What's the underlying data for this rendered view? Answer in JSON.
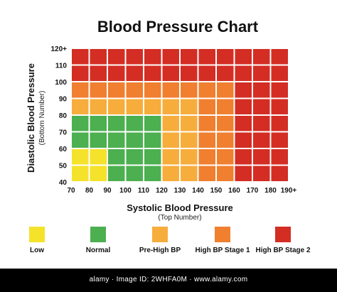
{
  "chart_data": {
    "type": "heatmap",
    "title": "Blood Pressure Chart",
    "xlabel": "Systolic Blood Pressure",
    "xlabel_sub": "(Top Number)",
    "ylabel": "Diastolic Blood Pressure",
    "ylabel_sub": "(Bottom Number)",
    "x_ticks": [
      "70",
      "80",
      "90",
      "100",
      "110",
      "120",
      "130",
      "140",
      "150",
      "160",
      "170",
      "180",
      "190+"
    ],
    "y_ticks": [
      "40",
      "50",
      "60",
      "70",
      "80",
      "90",
      "100",
      "110",
      "120+"
    ],
    "categories": [
      "Low",
      "Normal",
      "Pre-High BP",
      "High BP Stage 1",
      "High BP Stage 2"
    ],
    "colors": {
      "Low": "#f5e22a",
      "Normal": "#4caf50",
      "Pre-High BP": "#f7ad3b",
      "High BP Stage 1": "#f07f2f",
      "High BP Stage 2": "#d32d24"
    },
    "grid_rows_bottom_to_top": [
      [
        "Low",
        "Low",
        "Normal",
        "Normal",
        "Normal",
        "Pre-High BP",
        "Pre-High BP",
        "High BP Stage 1",
        "High BP Stage 1",
        "High BP Stage 2",
        "High BP Stage 2",
        "High BP Stage 2"
      ],
      [
        "Low",
        "Low",
        "Normal",
        "Normal",
        "Normal",
        "Pre-High BP",
        "Pre-High BP",
        "High BP Stage 1",
        "High BP Stage 1",
        "High BP Stage 2",
        "High BP Stage 2",
        "High BP Stage 2"
      ],
      [
        "Normal",
        "Normal",
        "Normal",
        "Normal",
        "Normal",
        "Pre-High BP",
        "Pre-High BP",
        "High BP Stage 1",
        "High BP Stage 1",
        "High BP Stage 2",
        "High BP Stage 2",
        "High BP Stage 2"
      ],
      [
        "Normal",
        "Normal",
        "Normal",
        "Normal",
        "Normal",
        "Pre-High BP",
        "Pre-High BP",
        "High BP Stage 1",
        "High BP Stage 1",
        "High BP Stage 2",
        "High BP Stage 2",
        "High BP Stage 2"
      ],
      [
        "Pre-High BP",
        "Pre-High BP",
        "Pre-High BP",
        "Pre-High BP",
        "Pre-High BP",
        "Pre-High BP",
        "Pre-High BP",
        "High BP Stage 1",
        "High BP Stage 1",
        "High BP Stage 2",
        "High BP Stage 2",
        "High BP Stage 2"
      ],
      [
        "High BP Stage 1",
        "High BP Stage 1",
        "High BP Stage 1",
        "High BP Stage 1",
        "High BP Stage 1",
        "High BP Stage 1",
        "High BP Stage 1",
        "High BP Stage 1",
        "High BP Stage 1",
        "High BP Stage 2",
        "High BP Stage 2",
        "High BP Stage 2"
      ],
      [
        "High BP Stage 2",
        "High BP Stage 2",
        "High BP Stage 2",
        "High BP Stage 2",
        "High BP Stage 2",
        "High BP Stage 2",
        "High BP Stage 2",
        "High BP Stage 2",
        "High BP Stage 2",
        "High BP Stage 2",
        "High BP Stage 2",
        "High BP Stage 2"
      ],
      [
        "High BP Stage 2",
        "High BP Stage 2",
        "High BP Stage 2",
        "High BP Stage 2",
        "High BP Stage 2",
        "High BP Stage 2",
        "High BP Stage 2",
        "High BP Stage 2",
        "High BP Stage 2",
        "High BP Stage 2",
        "High BP Stage 2",
        "High BP Stage 2"
      ]
    ],
    "legend_placement": "bottom"
  },
  "footer": {
    "text": "alamy · Image ID: 2WHFA0M · www.alamy.com"
  }
}
